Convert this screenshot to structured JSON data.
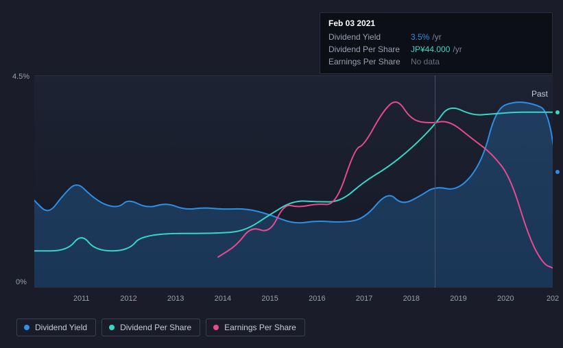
{
  "chart": {
    "type": "line",
    "background_color": "#1a1d29",
    "plot_bg_gradient": [
      "#1d2333",
      "#151825"
    ],
    "grid_color": "#2a2e3d",
    "axis_text_color": "#9aa0b0",
    "ylim": [
      0,
      4.5
    ],
    "y_ticks": [
      {
        "value": 4.5,
        "label": "4.5%"
      },
      {
        "value": 0,
        "label": "0%"
      }
    ],
    "x_domain": [
      2010,
      2021
    ],
    "x_ticks": [
      "2011",
      "2012",
      "2013",
      "2014",
      "2015",
      "2016",
      "2017",
      "2018",
      "2019",
      "2020",
      "202"
    ],
    "past_label": "Past",
    "crosshair_x": 2018.5,
    "end_markers": [
      {
        "series": "dividend_yield",
        "x": 2021.1,
        "y": 2.45
      },
      {
        "series": "dividend_per_share",
        "x": 2021.1,
        "y": 3.72
      }
    ],
    "series": {
      "dividend_yield": {
        "label": "Dividend Yield",
        "color": "#2d8fe6",
        "fill": true,
        "fill_opacity": 0.25,
        "stroke_width": 2,
        "points": [
          [
            2010.0,
            1.85
          ],
          [
            2010.3,
            1.55
          ],
          [
            2010.6,
            1.95
          ],
          [
            2010.9,
            2.25
          ],
          [
            2011.2,
            1.95
          ],
          [
            2011.5,
            1.75
          ],
          [
            2011.8,
            1.7
          ],
          [
            2012.0,
            1.88
          ],
          [
            2012.4,
            1.68
          ],
          [
            2012.8,
            1.8
          ],
          [
            2013.2,
            1.65
          ],
          [
            2013.6,
            1.7
          ],
          [
            2014.0,
            1.66
          ],
          [
            2014.5,
            1.68
          ],
          [
            2015.0,
            1.55
          ],
          [
            2015.5,
            1.35
          ],
          [
            2016.0,
            1.42
          ],
          [
            2016.5,
            1.38
          ],
          [
            2017.0,
            1.45
          ],
          [
            2017.5,
            2.05
          ],
          [
            2017.8,
            1.75
          ],
          [
            2018.2,
            1.95
          ],
          [
            2018.5,
            2.15
          ],
          [
            2019.0,
            2.05
          ],
          [
            2019.5,
            2.65
          ],
          [
            2019.8,
            3.8
          ],
          [
            2020.2,
            3.95
          ],
          [
            2020.6,
            3.9
          ],
          [
            2020.9,
            3.75
          ],
          [
            2021.1,
            2.45
          ]
        ]
      },
      "dividend_per_share": {
        "label": "Dividend Per Share",
        "color": "#3ad6c5",
        "fill": false,
        "stroke_width": 2,
        "points": [
          [
            2010.0,
            0.78
          ],
          [
            2010.7,
            0.78
          ],
          [
            2011.0,
            1.15
          ],
          [
            2011.3,
            0.78
          ],
          [
            2012.0,
            0.78
          ],
          [
            2012.3,
            1.15
          ],
          [
            2014.0,
            1.15
          ],
          [
            2014.5,
            1.22
          ],
          [
            2015.0,
            1.55
          ],
          [
            2015.5,
            1.85
          ],
          [
            2016.0,
            1.82
          ],
          [
            2016.5,
            1.82
          ],
          [
            2017.0,
            2.25
          ],
          [
            2017.5,
            2.55
          ],
          [
            2018.0,
            2.95
          ],
          [
            2018.5,
            3.45
          ],
          [
            2018.8,
            3.88
          ],
          [
            2019.3,
            3.65
          ],
          [
            2019.7,
            3.68
          ],
          [
            2020.2,
            3.72
          ],
          [
            2020.6,
            3.72
          ],
          [
            2021.1,
            3.72
          ]
        ]
      },
      "earnings_per_share": {
        "label": "Earnings Per Share",
        "color": "#e84a8f",
        "fill": false,
        "stroke_width": 2,
        "points": [
          [
            2013.9,
            0.65
          ],
          [
            2014.3,
            0.9
          ],
          [
            2014.6,
            1.3
          ],
          [
            2015.0,
            1.15
          ],
          [
            2015.3,
            1.78
          ],
          [
            2015.6,
            1.7
          ],
          [
            2016.0,
            1.78
          ],
          [
            2016.4,
            1.75
          ],
          [
            2016.8,
            2.95
          ],
          [
            2017.0,
            3.02
          ],
          [
            2017.4,
            3.75
          ],
          [
            2017.7,
            4.02
          ],
          [
            2018.0,
            3.55
          ],
          [
            2018.4,
            3.48
          ],
          [
            2018.8,
            3.55
          ],
          [
            2019.3,
            3.15
          ],
          [
            2019.7,
            2.85
          ],
          [
            2020.1,
            2.35
          ],
          [
            2020.5,
            1.05
          ],
          [
            2020.8,
            0.5
          ],
          [
            2021.0,
            0.42
          ]
        ]
      }
    }
  },
  "tooltip": {
    "date": "Feb 03 2021",
    "rows": [
      {
        "label": "Dividend Yield",
        "value": "3.5%",
        "unit": "/yr",
        "value_color": "#2d8fe6"
      },
      {
        "label": "Dividend Per Share",
        "value": "JP¥44.000",
        "unit": "/yr",
        "value_color": "#3ad6c5"
      },
      {
        "label": "Earnings Per Share",
        "value": "No data",
        "no_data": true
      }
    ]
  },
  "legend": [
    {
      "key": "dividend_yield",
      "label": "Dividend Yield",
      "color": "#2d8fe6"
    },
    {
      "key": "dividend_per_share",
      "label": "Dividend Per Share",
      "color": "#3ad6c5"
    },
    {
      "key": "earnings_per_share",
      "label": "Earnings Per Share",
      "color": "#e84a8f"
    }
  ]
}
